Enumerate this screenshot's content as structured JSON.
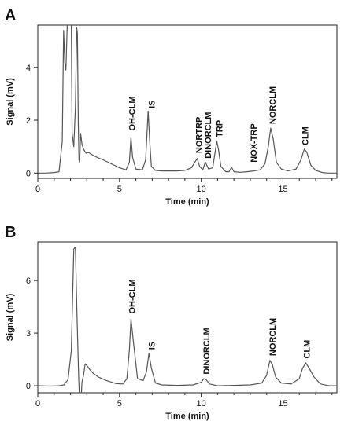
{
  "chart_data": [
    {
      "type": "line",
      "panel": "A",
      "xlabel": "Time (min)",
      "ylabel": "Signal (mV)",
      "xlim": [
        0,
        18.3
      ],
      "ylim": [
        -0.2,
        5.6
      ],
      "xticks": [
        0,
        5,
        10,
        15
      ],
      "yticks": [
        0,
        2,
        4
      ],
      "series": [
        {
          "x": [
            0,
            0.5,
            1.0,
            1.3,
            1.5,
            1.58,
            1.65,
            1.72,
            1.8,
            1.9,
            2.0,
            2.05,
            2.1,
            2.2,
            2.3,
            2.38,
            2.42,
            2.48,
            2.52,
            2.56,
            2.62,
            2.7,
            2.8,
            2.95,
            3.1,
            3.3,
            3.6,
            4.0,
            4.5,
            5.0,
            5.4,
            5.6,
            5.7,
            5.8,
            6.0,
            6.4,
            6.6,
            6.75,
            6.85,
            6.95,
            7.2,
            7.6,
            8.0,
            8.5,
            9.0,
            9.4,
            9.6,
            9.75,
            9.9,
            10.1,
            10.25,
            10.45,
            10.7,
            10.85,
            10.95,
            11.05,
            11.2,
            11.5,
            11.7,
            11.85,
            12.0,
            12.4,
            12.8,
            13.2,
            13.6,
            13.9,
            14.1,
            14.25,
            14.4,
            14.6,
            14.9,
            15.3,
            15.8,
            16.1,
            16.3,
            16.45,
            16.7,
            17.0,
            17.4,
            17.8,
            18.3
          ],
          "y": [
            0.0,
            0.0,
            0.02,
            0.05,
            1.2,
            5.4,
            4.2,
            3.9,
            5.6,
            5.6,
            5.6,
            5.6,
            1.5,
            1.0,
            2.5,
            5.5,
            5.3,
            1.8,
            0.5,
            0.4,
            1.5,
            1.1,
            0.9,
            0.75,
            0.78,
            0.7,
            0.6,
            0.5,
            0.35,
            0.2,
            0.12,
            0.4,
            1.35,
            0.6,
            0.15,
            0.12,
            0.5,
            2.35,
            1.2,
            0.25,
            0.1,
            0.08,
            0.08,
            0.08,
            0.1,
            0.2,
            0.4,
            0.55,
            0.25,
            0.12,
            0.42,
            0.15,
            0.2,
            0.8,
            1.2,
            0.9,
            0.25,
            0.05,
            0.05,
            0.22,
            0.05,
            0.03,
            0.05,
            0.08,
            0.12,
            0.35,
            1.0,
            1.7,
            1.3,
            0.4,
            0.15,
            0.08,
            0.15,
            0.5,
            0.9,
            0.8,
            0.3,
            0.1,
            0.02,
            0.0,
            0.0
          ]
        }
      ],
      "annotations": [
        "OH-CLM",
        "IS",
        "NORTRP",
        "DINORCLM",
        "TRP",
        "NOX-TRP",
        "NORCLM",
        "CLM"
      ]
    },
    {
      "type": "line",
      "panel": "B",
      "xlabel": "Time (min)",
      "ylabel": "Signal (mV)",
      "xlim": [
        0,
        18.3
      ],
      "ylim": [
        -0.4,
        8.2
      ],
      "xticks": [
        0,
        5,
        10,
        15
      ],
      "yticks": [
        0,
        3,
        6
      ],
      "series": [
        {
          "x": [
            0,
            0.8,
            1.3,
            1.6,
            1.85,
            2.05,
            2.2,
            2.3,
            2.4,
            2.5,
            2.58,
            2.62,
            2.7,
            2.75,
            2.8,
            2.9,
            3.05,
            3.2,
            3.4,
            3.7,
            4.2,
            4.8,
            5.2,
            5.45,
            5.6,
            5.7,
            5.85,
            6.1,
            6.45,
            6.65,
            6.8,
            6.95,
            7.2,
            7.6,
            8.5,
            9.5,
            10.0,
            10.15,
            10.3,
            10.5,
            11.0,
            12.0,
            13.0,
            13.7,
            14.0,
            14.2,
            14.35,
            14.55,
            14.9,
            15.5,
            16.0,
            16.2,
            16.4,
            16.6,
            16.9,
            17.3,
            17.8,
            18.3
          ],
          "y": [
            0.0,
            -0.02,
            0.0,
            0.05,
            0.35,
            2.0,
            7.8,
            7.9,
            4.0,
            0.5,
            -1.4,
            -1.4,
            0.2,
            0.4,
            0.6,
            1.25,
            1.1,
            0.9,
            0.7,
            0.5,
            0.3,
            0.12,
            0.1,
            0.4,
            2.0,
            3.8,
            2.5,
            0.4,
            0.3,
            0.8,
            1.85,
            1.0,
            0.15,
            0.05,
            0.02,
            0.05,
            0.2,
            0.4,
            0.35,
            0.1,
            0.0,
            0.02,
            0.05,
            0.15,
            0.6,
            1.45,
            1.2,
            0.5,
            0.15,
            0.1,
            0.4,
            1.0,
            1.3,
            1.0,
            0.5,
            0.1,
            0.0,
            0.0
          ]
        }
      ],
      "annotations": [
        "OH-CLM",
        "IS",
        "DINORCLM",
        "NORCLM",
        "CLM"
      ]
    }
  ]
}
